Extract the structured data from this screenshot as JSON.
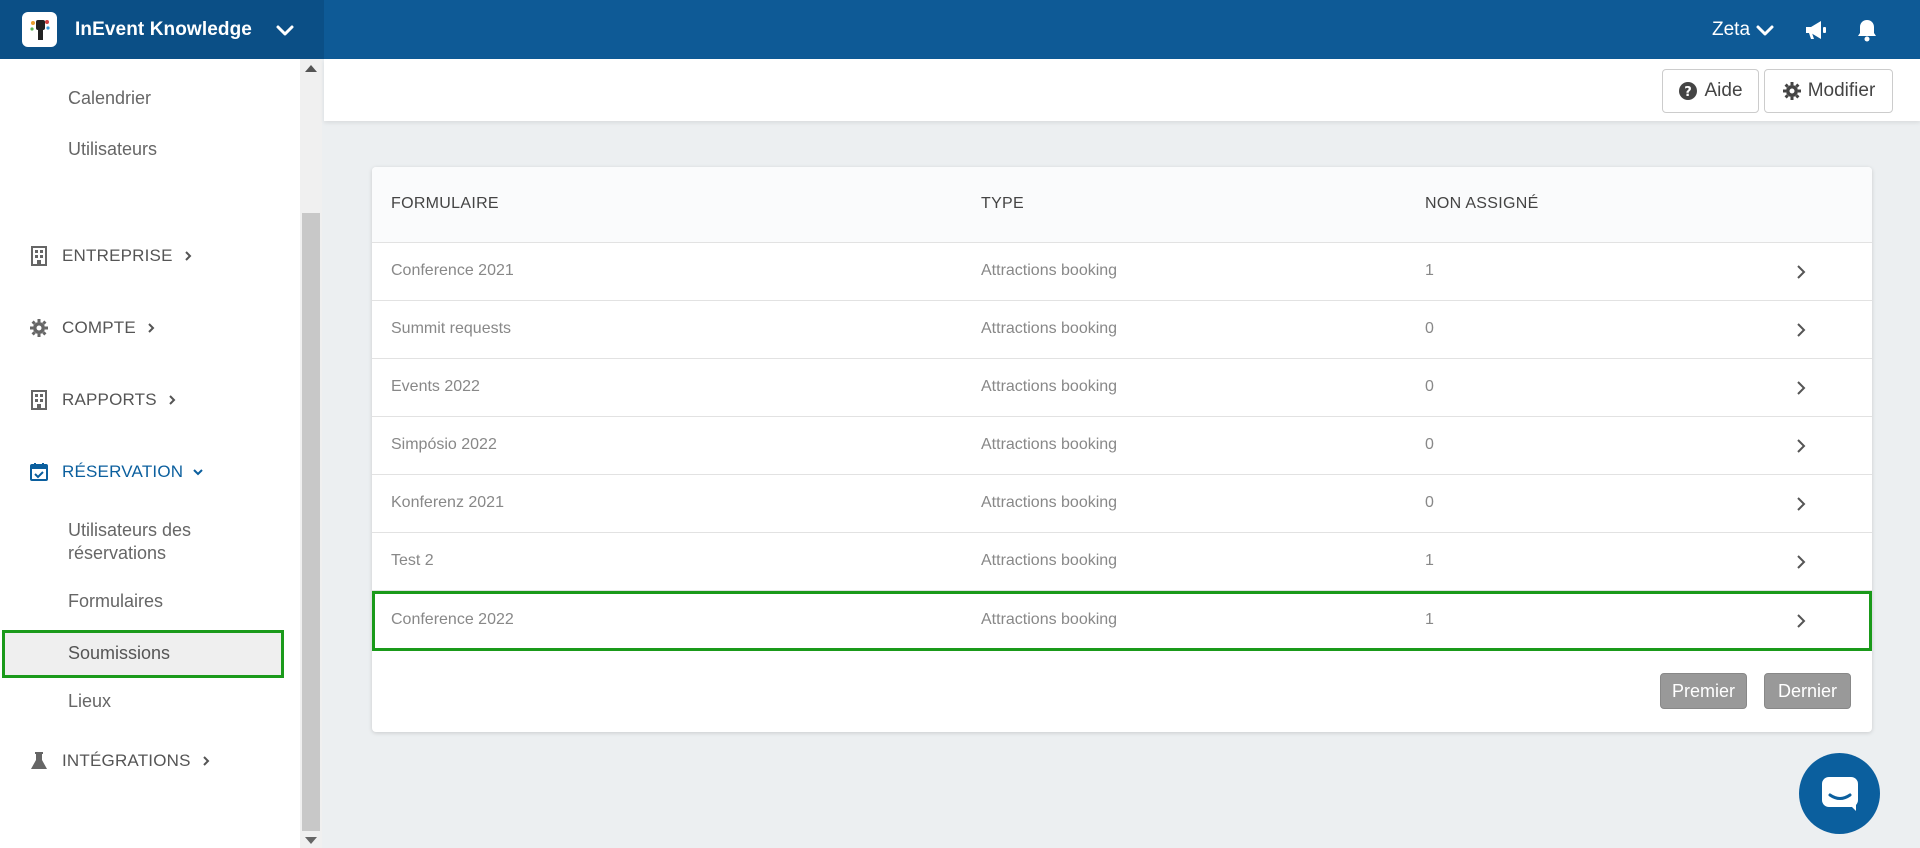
{
  "topbar": {
    "app_name": "InEvent Knowledge",
    "user_name": "Zeta",
    "icons": [
      "app-switch-chevron-icon",
      "chevron-down-icon",
      "megaphone-icon",
      "bell-icon"
    ]
  },
  "sidebar": {
    "links_top": [
      {
        "label": "Calendrier"
      },
      {
        "label": "Utilisateurs"
      }
    ],
    "sections": [
      {
        "label": "ENTREPRISE",
        "icon": "building-icon"
      },
      {
        "label": "COMPTE",
        "icon": "gear-icon"
      },
      {
        "label": "RAPPORTS",
        "icon": "building-icon"
      },
      {
        "label": "RÉSERVATION",
        "icon": "calendar-check-icon",
        "active": true
      },
      {
        "label": "INTÉGRATIONS",
        "icon": "flask-icon"
      }
    ],
    "reservation_items": [
      {
        "label": "Utilisateurs des réservations"
      },
      {
        "label": "Formulaires"
      },
      {
        "label": "Soumissions",
        "selected": true
      },
      {
        "label": "Lieux"
      }
    ]
  },
  "header": {
    "help_label": "Aide",
    "edit_label": "Modifier"
  },
  "table": {
    "columns": [
      "FORMULAIRE",
      "TYPE",
      "NON ASSIGNÉ"
    ],
    "rows": [
      {
        "form": "Conference 2021",
        "type": "Attractions booking",
        "unassigned": "1"
      },
      {
        "form": "Summit requests",
        "type": "Attractions booking",
        "unassigned": "0"
      },
      {
        "form": "Events 2022",
        "type": "Attractions booking",
        "unassigned": "0"
      },
      {
        "form": "Simpósio 2022",
        "type": "Attractions booking",
        "unassigned": "0"
      },
      {
        "form": "Konferenz 2021",
        "type": "Attractions booking",
        "unassigned": "0"
      },
      {
        "form": "Test 2",
        "type": "Attractions booking",
        "unassigned": "1"
      },
      {
        "form": "Conference 2022",
        "type": "Attractions booking",
        "unassigned": "1",
        "highlighted": true
      }
    ]
  },
  "pagination": {
    "first_label": "Premier",
    "last_label": "Dernier"
  },
  "colors": {
    "topbar": "#0e5a96",
    "accent": "#0b5f9e",
    "highlight_border": "#1a9a1a"
  }
}
